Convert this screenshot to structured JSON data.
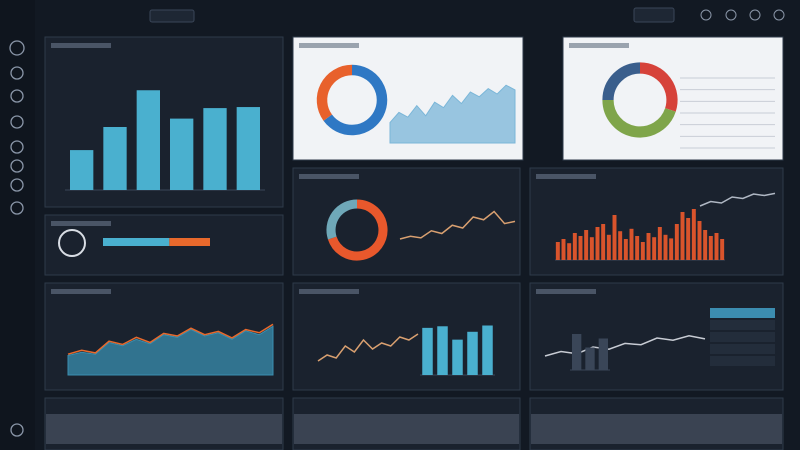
{
  "panels": [
    {
      "charts": [
        {
          "type": "bar",
          "values": [
            38,
            60,
            95,
            68,
            78,
            79
          ],
          "ylim": [
            0,
            100
          ],
          "color": "#4ab0cf"
        }
      ]
    },
    {
      "charts": [
        {
          "type": "progress",
          "values": [
            62,
            38
          ],
          "colors": [
            "#4ab0cf",
            "#e8692c"
          ]
        }
      ]
    },
    {
      "charts": [
        {
          "type": "donut",
          "values": [
            65,
            35
          ],
          "colors": [
            "#2f78c4",
            "#e8612c"
          ]
        },
        {
          "type": "area",
          "values": [
            30,
            45,
            38,
            55,
            40,
            60,
            52,
            70,
            58,
            75,
            68,
            80,
            72,
            85,
            78
          ],
          "ylim": [
            0,
            100
          ],
          "color": "#7ab6d8"
        }
      ]
    },
    {
      "charts": [
        {
          "type": "donut",
          "values": [
            30,
            45,
            25
          ],
          "colors": [
            "#d6423a",
            "#7fa54a",
            "#3a5e8c"
          ]
        }
      ]
    },
    {
      "charts": [
        {
          "type": "donut",
          "values": [
            70,
            30
          ],
          "colors": [
            "#e8582c",
            "#6fa8b8"
          ]
        },
        {
          "type": "line",
          "values": [
            20,
            25,
            22,
            35,
            30,
            45,
            40,
            60,
            55,
            70,
            48,
            52
          ],
          "ylim": [
            0,
            100
          ],
          "color": "#d9a070"
        }
      ]
    },
    {
      "charts": [
        {
          "type": "bar",
          "values": [
            30,
            35,
            28,
            45,
            40,
            50,
            38,
            55,
            60,
            42,
            75,
            48,
            35,
            52,
            40,
            30,
            45,
            38,
            55,
            42,
            36,
            60,
            80,
            70,
            85,
            65,
            50,
            40,
            45,
            35
          ],
          "ylim": [
            0,
            100
          ],
          "color": "#d9542c"
        },
        {
          "type": "line",
          "values": [
            30,
            45,
            40,
            60,
            55,
            70,
            65,
            72
          ],
          "ylim": [
            0,
            100
          ],
          "color": "#b0b8c4"
        }
      ]
    },
    {
      "charts": [
        {
          "type": "area",
          "values": [
            30,
            35,
            32,
            50,
            45,
            55,
            48,
            62,
            58,
            70,
            60,
            65,
            55,
            68,
            62,
            75
          ],
          "ylim": [
            0,
            100
          ],
          "color": "#3a8fb0"
        },
        {
          "type": "line",
          "values": [
            32,
            38,
            34,
            52,
            47,
            58,
            50,
            64,
            60,
            72,
            62,
            67,
            57,
            70,
            65,
            78
          ],
          "ylim": [
            0,
            100
          ],
          "color": "#e8692c"
        }
      ]
    },
    {
      "charts": [
        {
          "type": "line",
          "values": [
            15,
            25,
            20,
            40,
            30,
            50,
            35,
            45,
            40,
            55,
            50,
            60
          ],
          "ylim": [
            0,
            100
          ],
          "color": "#d9a070"
        },
        {
          "type": "bar",
          "values": [
            60,
            62,
            45,
            55,
            63
          ],
          "ylim": [
            0,
            70
          ],
          "color": "#4ab0cf"
        }
      ]
    },
    {
      "charts": [
        {
          "type": "line",
          "values": [
            20,
            30,
            25,
            40,
            35,
            48,
            45,
            60,
            55,
            65,
            58
          ],
          "ylim": [
            0,
            100
          ],
          "color": "#c8ccd4"
        },
        {
          "type": "bar",
          "values": [
            40,
            25,
            35
          ],
          "ylim": [
            0,
            50
          ],
          "color": "#3a4658"
        }
      ]
    }
  ]
}
